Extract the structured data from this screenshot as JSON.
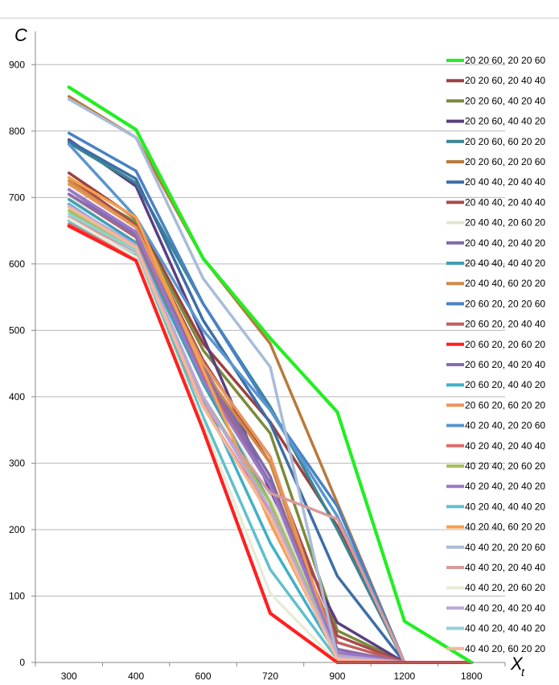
{
  "chart_data": {
    "type": "line",
    "xlabel": "X",
    "xlabel_sub": "t",
    "ylabel": "C",
    "categories": [
      "300",
      "400",
      "600",
      "720",
      "900",
      "1200",
      "1800"
    ],
    "ylim": [
      0,
      950
    ],
    "yticks": [
      0,
      100,
      200,
      300,
      400,
      500,
      600,
      700,
      800,
      900
    ],
    "grid": "horizontal",
    "legend_position": "right",
    "series": [
      {
        "name": "20 20 60, 20 20 60",
        "color": "#22ee22",
        "values": [
          866,
          802,
          608,
          488,
          377,
          62,
          0
        ]
      },
      {
        "name": "20 20 60, 20 40 40",
        "color": "#9b4040",
        "values": [
          737,
          668,
          480,
          362,
          205,
          0,
          0
        ]
      },
      {
        "name": "20 20 60, 40 20 40",
        "color": "#7a8a3a",
        "values": [
          720,
          663,
          470,
          345,
          48,
          0,
          0
        ]
      },
      {
        "name": "20 20 60, 40 40 20",
        "color": "#5b3f80",
        "values": [
          787,
          717,
          490,
          258,
          60,
          0,
          0
        ]
      },
      {
        "name": "20 20 60, 60 20 20",
        "color": "#3a8593",
        "values": [
          782,
          722,
          540,
          385,
          200,
          0,
          0
        ]
      },
      {
        "name": "20 20 60, 20 20 60",
        "color": "#b87a3c",
        "values": [
          852,
          790,
          608,
          480,
          240,
          0,
          0
        ]
      },
      {
        "name": "20 40 40, 20 40 40",
        "color": "#3d6ea6",
        "values": [
          785,
          728,
          515,
          360,
          130,
          0,
          0
        ]
      },
      {
        "name": "20 40 40, 20 40 40",
        "color": "#a84a4a",
        "values": [
          730,
          658,
          455,
          300,
          40,
          0,
          0
        ]
      },
      {
        "name": "20 40 40, 20 60 20",
        "color": "#e2e6d0",
        "values": [
          700,
          630,
          420,
          250,
          20,
          0,
          0
        ]
      },
      {
        "name": "20 40 40, 20 40 20",
        "color": "#7e6aa6",
        "values": [
          712,
          643,
          445,
          280,
          12,
          0,
          0
        ]
      },
      {
        "name": "20 40 40, 40 40 20",
        "color": "#3fa0b8",
        "values": [
          697,
          632,
          420,
          240,
          10,
          0,
          0
        ]
      },
      {
        "name": "20 40 40, 60 20 20",
        "color": "#d08a45",
        "values": [
          725,
          655,
          440,
          300,
          8,
          0,
          0
        ]
      },
      {
        "name": "20 60 20, 20 20 60",
        "color": "#4a82c4",
        "values": [
          797,
          740,
          540,
          380,
          235,
          0,
          0
        ]
      },
      {
        "name": "20 60 20, 20 40 40",
        "color": "#c0605d",
        "values": [
          705,
          640,
          430,
          270,
          30,
          0,
          0
        ]
      },
      {
        "name": "20 60 20, 20 60 20",
        "color": "#ff2020",
        "values": [
          657,
          605,
          350,
          74,
          0,
          0,
          0
        ]
      },
      {
        "name": "20 60 20, 40 20 40",
        "color": "#8a6cac",
        "values": [
          705,
          643,
          440,
          270,
          20,
          0,
          0
        ]
      },
      {
        "name": "20 60 20, 40 40 20",
        "color": "#3fb0c8",
        "values": [
          690,
          625,
          400,
          180,
          10,
          0,
          0
        ]
      },
      {
        "name": "20 60 20, 60 20 20",
        "color": "#e8955a",
        "values": [
          720,
          655,
          450,
          310,
          10,
          0,
          0
        ]
      },
      {
        "name": "40 20 40, 20 20 60",
        "color": "#5a96d0",
        "values": [
          780,
          670,
          500,
          380,
          220,
          0,
          0
        ]
      },
      {
        "name": "40 20 40, 20 40 40",
        "color": "#e06a6a",
        "values": [
          660,
          608,
          385,
          225,
          15,
          0,
          0
        ]
      },
      {
        "name": "40 20 40, 20 60 20",
        "color": "#a5c060",
        "values": [
          680,
          620,
          400,
          240,
          12,
          0,
          0
        ]
      },
      {
        "name": "40 20 40, 20 40 20",
        "color": "#9a78c8",
        "values": [
          712,
          648,
          425,
          265,
          15,
          0,
          0
        ]
      },
      {
        "name": "40 20 40, 40 40 20",
        "color": "#60c0cc",
        "values": [
          665,
          612,
          370,
          140,
          5,
          0,
          0
        ]
      },
      {
        "name": "40 20 40, 60 20 20",
        "color": "#f5a050",
        "values": [
          730,
          670,
          440,
          210,
          10,
          0,
          0
        ]
      },
      {
        "name": "40 40 20, 20 20 60",
        "color": "#a8bcd8",
        "values": [
          848,
          790,
          578,
          445,
          8,
          0,
          0
        ]
      },
      {
        "name": "40 40 20, 20 40 40",
        "color": "#d89a9a",
        "values": [
          670,
          618,
          390,
          255,
          216,
          0,
          0
        ]
      },
      {
        "name": "40 40 20, 20 60 20",
        "color": "#e8ecd8",
        "values": [
          668,
          610,
          360,
          104,
          0,
          0,
          0
        ]
      },
      {
        "name": "40 40 20, 40 20 40",
        "color": "#b8a8d8",
        "values": [
          688,
          628,
          400,
          230,
          10,
          0,
          0
        ]
      },
      {
        "name": "40 40 20, 40 40 20",
        "color": "#90d0d4",
        "values": [
          675,
          620,
          385,
          220,
          5,
          0,
          0
        ]
      },
      {
        "name": "40 40 20, 60 20 20",
        "color": "#f5b89a",
        "values": [
          685,
          625,
          385,
          220,
          5,
          0,
          0
        ]
      }
    ]
  }
}
